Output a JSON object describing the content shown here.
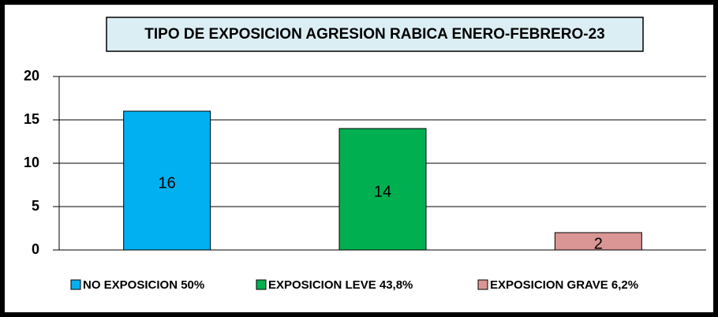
{
  "chart_data": {
    "type": "bar",
    "title": "TIPO DE EXPOSICION AGRESION RABICA ENERO-FEBRERO-23",
    "series": [
      {
        "name": "NO EXPOSICION 50%",
        "color": "#00b0f0",
        "values": [
          16
        ]
      },
      {
        "name": "EXPOSICION LEVE 43,8%",
        "color": "#00b050",
        "values": [
          14
        ]
      },
      {
        "name": "EXPOSICION GRAVE 6,2%",
        "color": "#d99694",
        "values": [
          2
        ]
      }
    ],
    "ylim": [
      0,
      20
    ],
    "yticks": [
      0,
      5,
      10,
      15,
      20
    ],
    "grid": true,
    "legend": "bottom"
  }
}
